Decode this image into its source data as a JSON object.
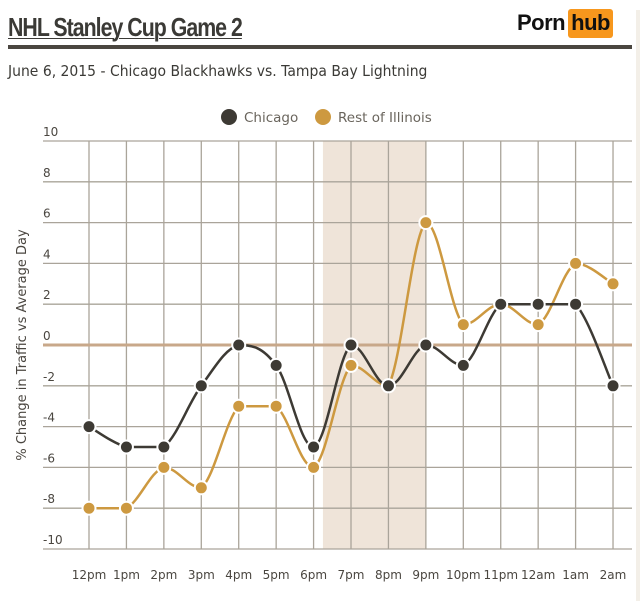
{
  "header": {
    "title": "NHL Stanley Cup Game 2",
    "subtitle": "June 6, 2015 - Chicago Blackhawks vs. Tampa Bay Lightning",
    "logo": {
      "part1": "Porn",
      "part2": "hub"
    }
  },
  "colors": {
    "chicago": "#3d3a34",
    "rest": "#cd9940",
    "grid": "#aaa49a",
    "zero_line": "#c8a88a",
    "highlight": "#efe4d9",
    "text": "#4a4640",
    "logo_accent": "#f7971d"
  },
  "chart_data": {
    "type": "line",
    "title": "NHL Stanley Cup Game 2",
    "subtitle": "June 6, 2015 - Chicago Blackhawks vs. Tampa Bay Lightning",
    "xlabel": "",
    "ylabel": "% Change in Traffic vs Average Day",
    "categories": [
      "12pm",
      "1pm",
      "2pm",
      "3pm",
      "4pm",
      "5pm",
      "6pm",
      "7pm",
      "8pm",
      "9pm",
      "10pm",
      "11pm",
      "12am",
      "1am",
      "2am"
    ],
    "series": [
      {
        "name": "Chicago",
        "color": "#3d3a34",
        "values": [
          -4,
          -5,
          -5,
          -2,
          0,
          -1,
          -5,
          0,
          -2,
          0,
          -1,
          2,
          2,
          2,
          -2
        ]
      },
      {
        "name": "Rest of Illinois",
        "color": "#cd9940",
        "values": [
          -8,
          -8,
          -6,
          -7,
          -3,
          -3,
          -6,
          -1,
          -2,
          6,
          1,
          2,
          1,
          4,
          3
        ]
      }
    ],
    "ylim": [
      -10,
      10
    ],
    "yticks": [
      10,
      8,
      6,
      4,
      2,
      0,
      -2,
      -4,
      -6,
      -8,
      -10
    ],
    "grid": true,
    "legend_position": "top",
    "highlight_band": {
      "from_index": 6.25,
      "to_index": 9,
      "description": "game time shading 6pm-9pm"
    },
    "reference_line": 0
  }
}
